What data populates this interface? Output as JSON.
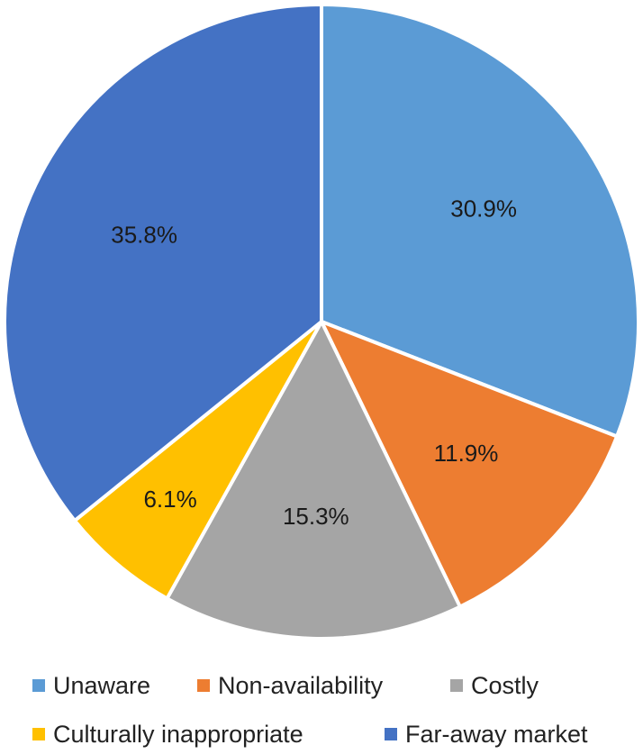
{
  "chart_data": {
    "type": "pie",
    "title": "",
    "start_angle_deg": 0,
    "direction": "clockwise",
    "slices": [
      {
        "label": "Unaware",
        "value": 30.9,
        "display": "30.9%",
        "color": "#5B9BD5"
      },
      {
        "label": "Non-availability",
        "value": 11.9,
        "display": "11.9%",
        "color": "#ED7D31"
      },
      {
        "label": "Costly",
        "value": 15.3,
        "display": "15.3%",
        "color": "#A5A5A5"
      },
      {
        "label": "Culturally inappropriate",
        "value": 6.1,
        "display": "6.1%",
        "color": "#FFC000"
      },
      {
        "label": "Far-away market",
        "value": 35.8,
        "display": "35.8%",
        "color": "#4472C4"
      }
    ],
    "legend_position": "bottom"
  }
}
